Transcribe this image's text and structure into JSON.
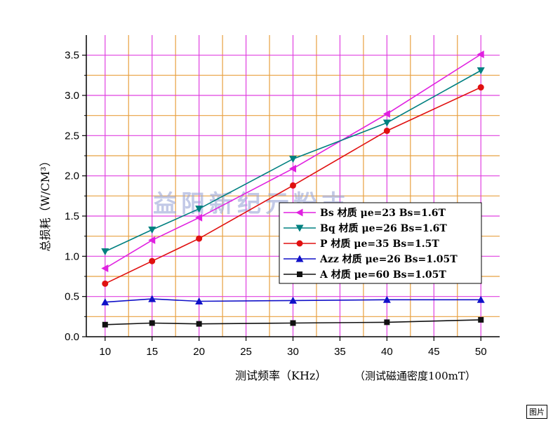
{
  "chart_data": {
    "type": "line",
    "xlabel": "测试频率（KHz）",
    "xlabel_note": "（测试磁通密度100mT）",
    "ylabel": "总损耗（W/CM³）",
    "xlim": [
      8,
      52
    ],
    "ylim": [
      0,
      3.75
    ],
    "xticks": [
      "10",
      "15",
      "20",
      "25",
      "30",
      "35",
      "40",
      "45",
      "50"
    ],
    "yticks": [
      "0.0",
      "0.5",
      "1.0",
      "1.5",
      "2.0",
      "2.5",
      "3.0",
      "3.5"
    ],
    "grid": true,
    "legend_position": "center-right",
    "series": [
      {
        "name": "Bs 材质  μe=23  Bs=1.6T",
        "color": "#e020e0",
        "marker": "triangle-left",
        "x": [
          10,
          15,
          20,
          30,
          40,
          50
        ],
        "y": [
          0.85,
          1.2,
          1.48,
          2.09,
          2.77,
          3.51
        ]
      },
      {
        "name": "Bq 材质  μe=26  Bs=1.6T",
        "color": "#008080",
        "marker": "triangle-down",
        "x": [
          10,
          15,
          20,
          30,
          40,
          50
        ],
        "y": [
          1.06,
          1.33,
          1.59,
          2.21,
          2.66,
          3.31
        ]
      },
      {
        "name": "P 材质  μe=35  Bs=1.5T",
        "color": "#e01010",
        "marker": "circle",
        "x": [
          10,
          15,
          20,
          30,
          40,
          50
        ],
        "y": [
          0.66,
          0.94,
          1.22,
          1.88,
          2.56,
          3.1
        ]
      },
      {
        "name": "Azz 材质  μe=26  Bs=1.05T",
        "color": "#1010c8",
        "marker": "triangle-up",
        "x": [
          10,
          15,
          20,
          30,
          40,
          50
        ],
        "y": [
          0.43,
          0.47,
          0.44,
          0.45,
          0.46,
          0.46
        ]
      },
      {
        "name": "A  材质  μe=60  Bs=1.05T",
        "color": "#111111",
        "marker": "square",
        "x": [
          10,
          15,
          20,
          30,
          40,
          50
        ],
        "y": [
          0.15,
          0.17,
          0.16,
          0.17,
          0.18,
          0.21
        ]
      }
    ]
  },
  "watermark": "益阳新纪元粉末",
  "corner_tag": "图片"
}
